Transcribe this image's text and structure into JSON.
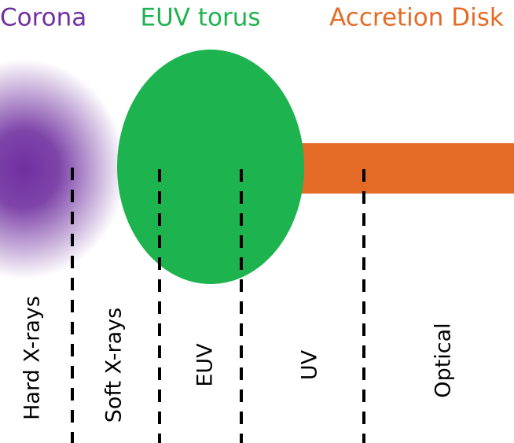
{
  "regions": [
    {
      "label": "Corona"
    },
    {
      "label": "EUV torus"
    },
    {
      "label": "Accretion Disk"
    }
  ],
  "bands": [
    {
      "label": "Hard X-rays"
    },
    {
      "label": "Soft X-rays"
    },
    {
      "label": "EUV"
    },
    {
      "label": "UV"
    },
    {
      "label": "Optical"
    }
  ]
}
